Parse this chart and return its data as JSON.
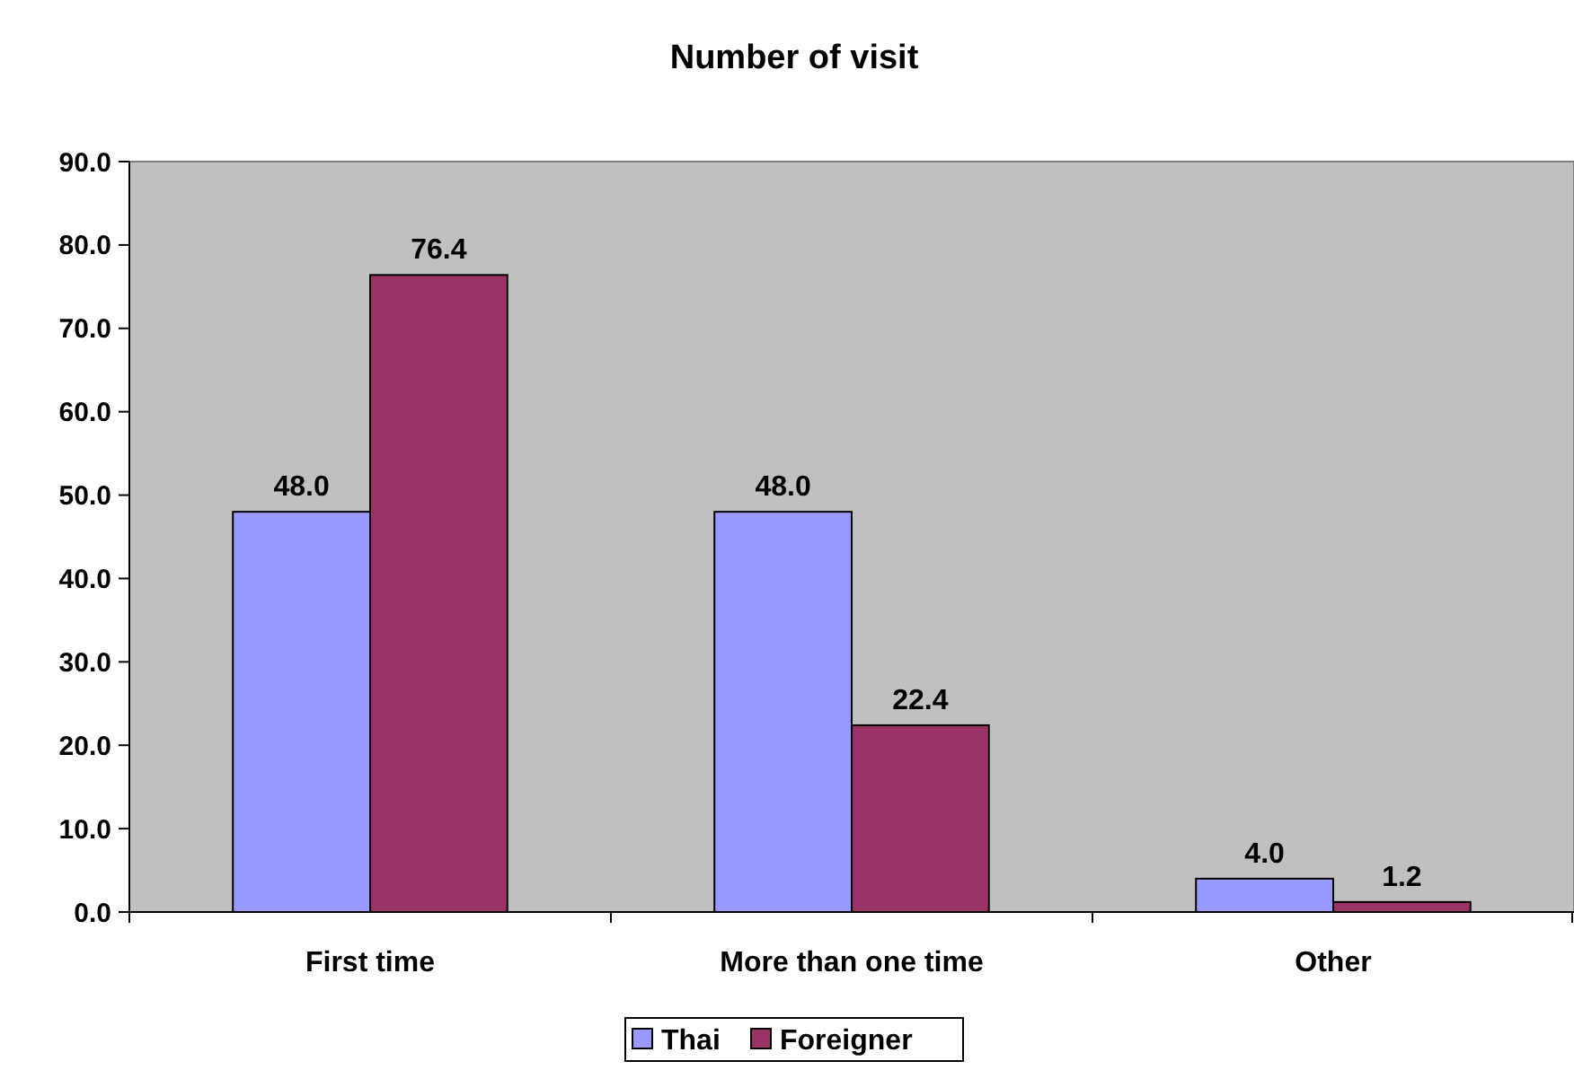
{
  "chart_data": {
    "type": "bar",
    "title": "Number of visit",
    "categories": [
      "First time",
      "More than one time",
      "Other"
    ],
    "series": [
      {
        "name": "Thai",
        "color": "#9999ff",
        "values": [
          48.0,
          48.0,
          4.0
        ],
        "value_labels": [
          "48.0",
          "48.0",
          "4.0"
        ]
      },
      {
        "name": "Foreigner",
        "color": "#993366",
        "values": [
          76.4,
          22.4,
          1.2
        ],
        "value_labels": [
          "76.4",
          "22.4",
          "1.2"
        ]
      }
    ],
    "ylim": [
      0,
      90
    ],
    "yticks": [
      {
        "value": 0,
        "label": "0.0"
      },
      {
        "value": 10,
        "label": "10.0"
      },
      {
        "value": 20,
        "label": "20.0"
      },
      {
        "value": 30,
        "label": "30.0"
      },
      {
        "value": 40,
        "label": "40.0"
      },
      {
        "value": 50,
        "label": "50.0"
      },
      {
        "value": 60,
        "label": "60.0"
      },
      {
        "value": 70,
        "label": "70.0"
      },
      {
        "value": 80,
        "label": "80.0"
      },
      {
        "value": 90,
        "label": "90.0"
      }
    ],
    "grid": false,
    "legend": "bottom"
  }
}
